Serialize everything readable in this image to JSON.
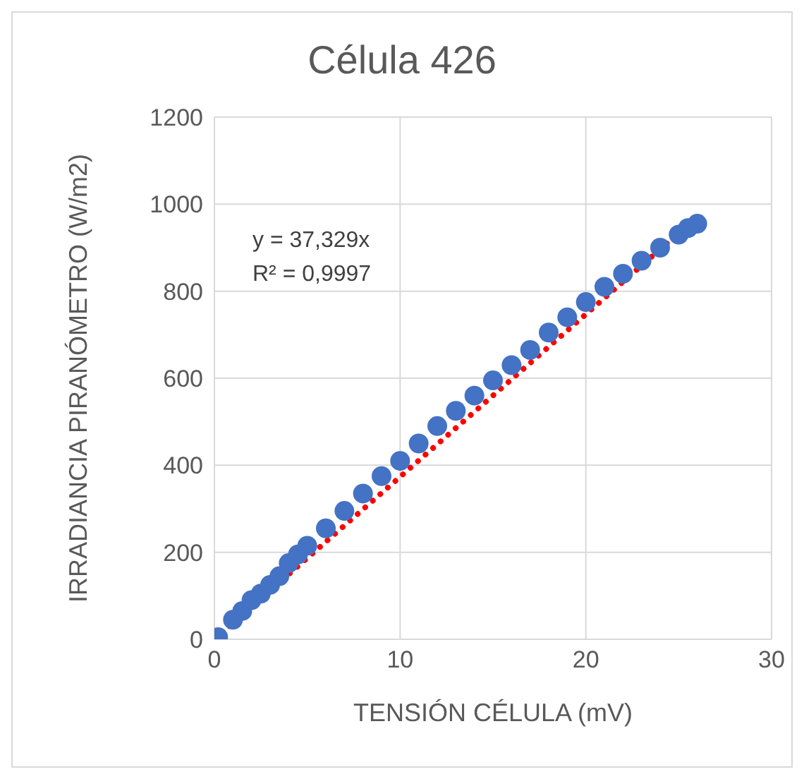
{
  "chart_data": {
    "type": "scatter",
    "title": "Célula 426",
    "xlabel": "TENSIÓN CÉLULA (mV)",
    "ylabel": "IRRADIANCIA PIRANÓMETRO (W/m2)",
    "xlim": [
      0,
      30
    ],
    "xticks": [
      0,
      10,
      20,
      30
    ],
    "ylim": [
      0,
      1200
    ],
    "yticks": [
      0,
      200,
      400,
      600,
      800,
      1000,
      1200
    ],
    "grid": true,
    "marker": "circle",
    "annotations": [
      "y = 37,329x",
      "R² = 0,9997"
    ],
    "series": [
      {
        "color": "#4472c4",
        "x": [
          0.2,
          1,
          1.5,
          2,
          2.5,
          3,
          3.5,
          4,
          4.5,
          5,
          6,
          7,
          8,
          9,
          10,
          11,
          12,
          13,
          14,
          15,
          16,
          17,
          18,
          19,
          20,
          21,
          22,
          23,
          24,
          25,
          25.5,
          26
        ],
        "values": [
          5,
          45,
          65,
          90,
          105,
          125,
          145,
          175,
          195,
          215,
          255,
          295,
          335,
          375,
          410,
          450,
          490,
          525,
          560,
          595,
          630,
          665,
          705,
          740,
          775,
          810,
          840,
          870,
          900,
          930,
          945,
          955
        ]
      },
      {
        "type": "line",
        "color": "#ff0000",
        "line_style": "dotted",
        "marker": "none",
        "x": [
          0,
          25.6
        ],
        "values": [
          0,
          956
        ]
      }
    ]
  }
}
